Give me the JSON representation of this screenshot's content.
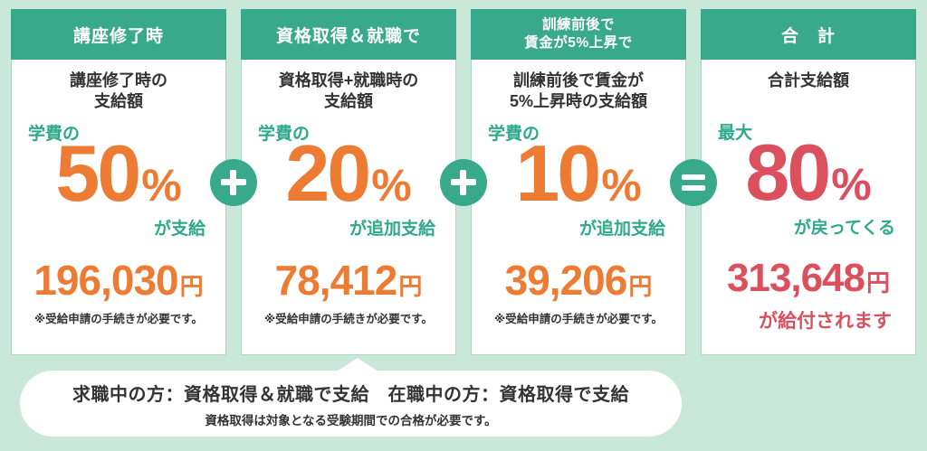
{
  "colors": {
    "background": "#cae8d9",
    "header_green": "#38a98a",
    "text_green": "#2ea98a",
    "accent_orange": "#ed7b34",
    "accent_red": "#dc505e",
    "card_border": "#aed8c6",
    "text_dark": "#333333"
  },
  "cards": [
    {
      "header_lines": [
        "講座修了時"
      ],
      "subtitle_lines": [
        "講座修了時の",
        "支給額"
      ],
      "prefix": "学費の",
      "percent": "50",
      "percent_unit": "%",
      "suffix": "が支給",
      "amount": "196,030",
      "amount_unit": "円",
      "note": "※受給申請の手続きが必要です。"
    },
    {
      "header_lines": [
        "資格取得＆就職で"
      ],
      "subtitle_lines": [
        "資格取得+就職時の",
        "支給額"
      ],
      "prefix": "学費の",
      "percent": "20",
      "percent_unit": "%",
      "suffix": "が追加支給",
      "amount": "78,412",
      "amount_unit": "円",
      "note": "※受給申請の手続きが必要です。"
    },
    {
      "header_lines": [
        "訓練前後で",
        "賃金が5%上昇で"
      ],
      "subtitle_lines": [
        "訓練前後で賃金が",
        "5%上昇時の支給額"
      ],
      "prefix": "学費の",
      "percent": "10",
      "percent_unit": "%",
      "suffix": "が追加支給",
      "amount": "39,206",
      "amount_unit": "円",
      "note": "※受給申請の手続きが必要です。"
    },
    {
      "header_lines": [
        "合　計"
      ],
      "subtitle_lines": [
        "合計支給額"
      ],
      "prefix": "最大",
      "percent": "80",
      "percent_unit": "%",
      "suffix": "が戻ってくる",
      "amount": "313,648",
      "amount_unit": "円",
      "note": "が給付されます"
    }
  ],
  "operators": [
    {
      "icon": "plus-icon",
      "symbol": "+"
    },
    {
      "icon": "plus-icon",
      "symbol": "+"
    },
    {
      "icon": "equals-icon",
      "symbol": "="
    }
  ],
  "footer": {
    "line1": "求職中の方：資格取得＆就職で支給　在職中の方：資格取得で支給",
    "line2": "資格取得は対象となる受験期間での合格が必要です。"
  }
}
